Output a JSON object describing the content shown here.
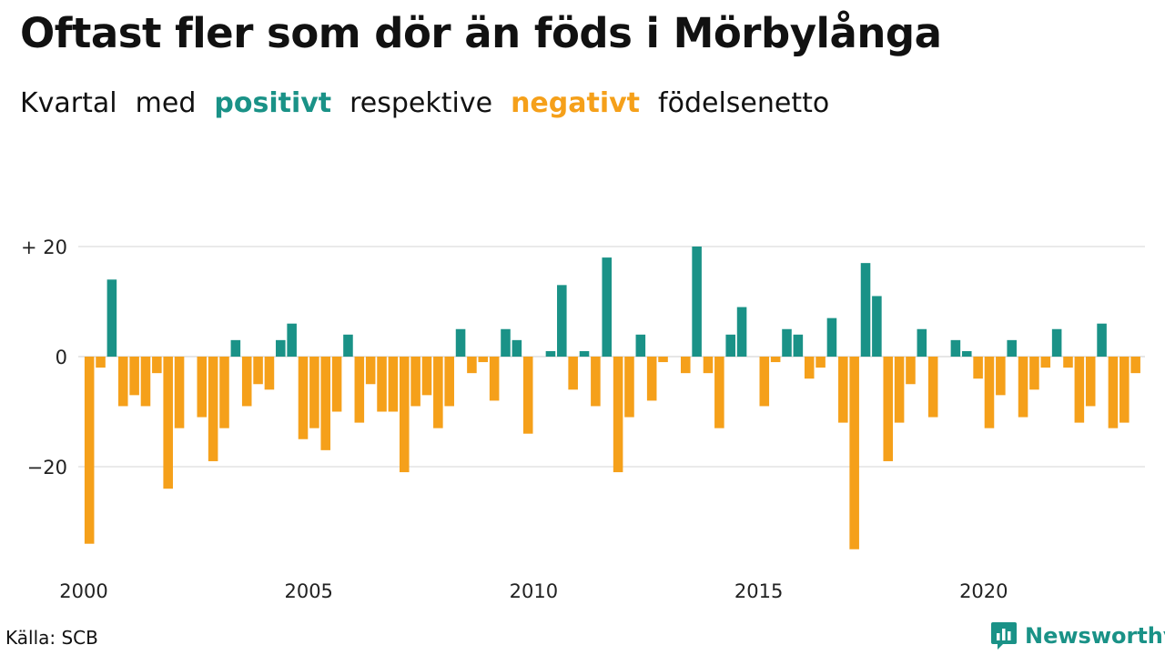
{
  "title": "Oftast fler som dör än föds i Mörbylånga",
  "subtitle": {
    "w1": "Kvartal",
    "w2": "med",
    "positive_word": "positivt",
    "w3": "respektive",
    "negative_word": "negativt",
    "w4": "födelsenetto"
  },
  "source": "Källa: SCB",
  "brand": {
    "name": "Newsworthy",
    "icon": "newsworthy-logo-icon"
  },
  "colors": {
    "positive": "#1a9287",
    "negative": "#f5a01a",
    "grid": "#dddddd"
  },
  "chart_data": {
    "type": "bar",
    "title": "Oftast fler som dör än föds i Mörbylånga",
    "subtitle": "Kvartal med positivt respektive negativt födelsenetto",
    "xlabel": "",
    "ylabel": "",
    "ylim": [
      -36,
      22
    ],
    "yticks": [
      {
        "value": 20,
        "label": "+ 20"
      },
      {
        "value": 0,
        "label": "0"
      },
      {
        "value": -20,
        "label": "−20"
      }
    ],
    "xticks": [
      "2000",
      "2005",
      "2010",
      "2015",
      "2020"
    ],
    "grid": true,
    "categories": [
      "2000 Q1",
      "2000 Q2",
      "2000 Q3",
      "2000 Q4",
      "2001 Q1",
      "2001 Q2",
      "2001 Q3",
      "2001 Q4",
      "2002 Q1",
      "2002 Q2",
      "2002 Q3",
      "2002 Q4",
      "2003 Q1",
      "2003 Q2",
      "2003 Q3",
      "2003 Q4",
      "2004 Q1",
      "2004 Q2",
      "2004 Q3",
      "2004 Q4",
      "2005 Q1",
      "2005 Q2",
      "2005 Q3",
      "2005 Q4",
      "2006 Q1",
      "2006 Q2",
      "2006 Q3",
      "2006 Q4",
      "2007 Q1",
      "2007 Q2",
      "2007 Q3",
      "2007 Q4",
      "2008 Q1",
      "2008 Q2",
      "2008 Q3",
      "2008 Q4",
      "2009 Q1",
      "2009 Q2",
      "2009 Q3",
      "2009 Q4",
      "2010 Q1",
      "2010 Q2",
      "2010 Q3",
      "2010 Q4",
      "2011 Q1",
      "2011 Q2",
      "2011 Q3",
      "2011 Q4",
      "2012 Q1",
      "2012 Q2",
      "2012 Q3",
      "2012 Q4",
      "2013 Q1",
      "2013 Q2",
      "2013 Q3",
      "2013 Q4",
      "2014 Q1",
      "2014 Q2",
      "2014 Q3",
      "2014 Q4",
      "2015 Q1",
      "2015 Q2",
      "2015 Q3",
      "2015 Q4",
      "2016 Q1",
      "2016 Q2",
      "2016 Q3",
      "2016 Q4",
      "2017 Q1",
      "2017 Q2",
      "2017 Q3",
      "2017 Q4",
      "2018 Q1",
      "2018 Q2",
      "2018 Q3",
      "2018 Q4",
      "2019 Q1",
      "2019 Q2",
      "2019 Q3",
      "2019 Q4",
      "2020 Q1",
      "2020 Q2",
      "2020 Q3",
      "2020 Q4",
      "2021 Q1",
      "2021 Q2",
      "2021 Q3",
      "2021 Q4",
      "2022 Q1",
      "2022 Q2",
      "2022 Q3",
      "2022 Q4",
      "2023 Q1",
      "2023 Q2",
      "2023 Q3",
      "2023 Q4"
    ],
    "values": [
      -34,
      -2,
      14,
      -9,
      -7,
      -9,
      -3,
      -24,
      -13,
      0,
      -11,
      -19,
      -13,
      3,
      -9,
      -5,
      -6,
      3,
      6,
      -15,
      -13,
      -17,
      -10,
      4,
      -12,
      -5,
      -10,
      -10,
      -21,
      -9,
      -7,
      -13,
      -9,
      5,
      -3,
      -1,
      -8,
      5,
      3,
      -14,
      0,
      1,
      13,
      -6,
      1,
      -9,
      18,
      -21,
      -11,
      4,
      -8,
      -1,
      0,
      -3,
      20,
      -3,
      -13,
      4,
      9,
      0,
      -9,
      -1,
      5,
      4,
      -4,
      -2,
      7,
      -12,
      -35,
      17,
      11,
      -19,
      -12,
      -5,
      5,
      -11,
      0,
      3,
      1,
      -4,
      -13,
      -7,
      3,
      -11,
      -6,
      -2,
      5,
      -2,
      -12,
      -9,
      6,
      -13,
      -12,
      -3,
      0,
      0
    ]
  }
}
